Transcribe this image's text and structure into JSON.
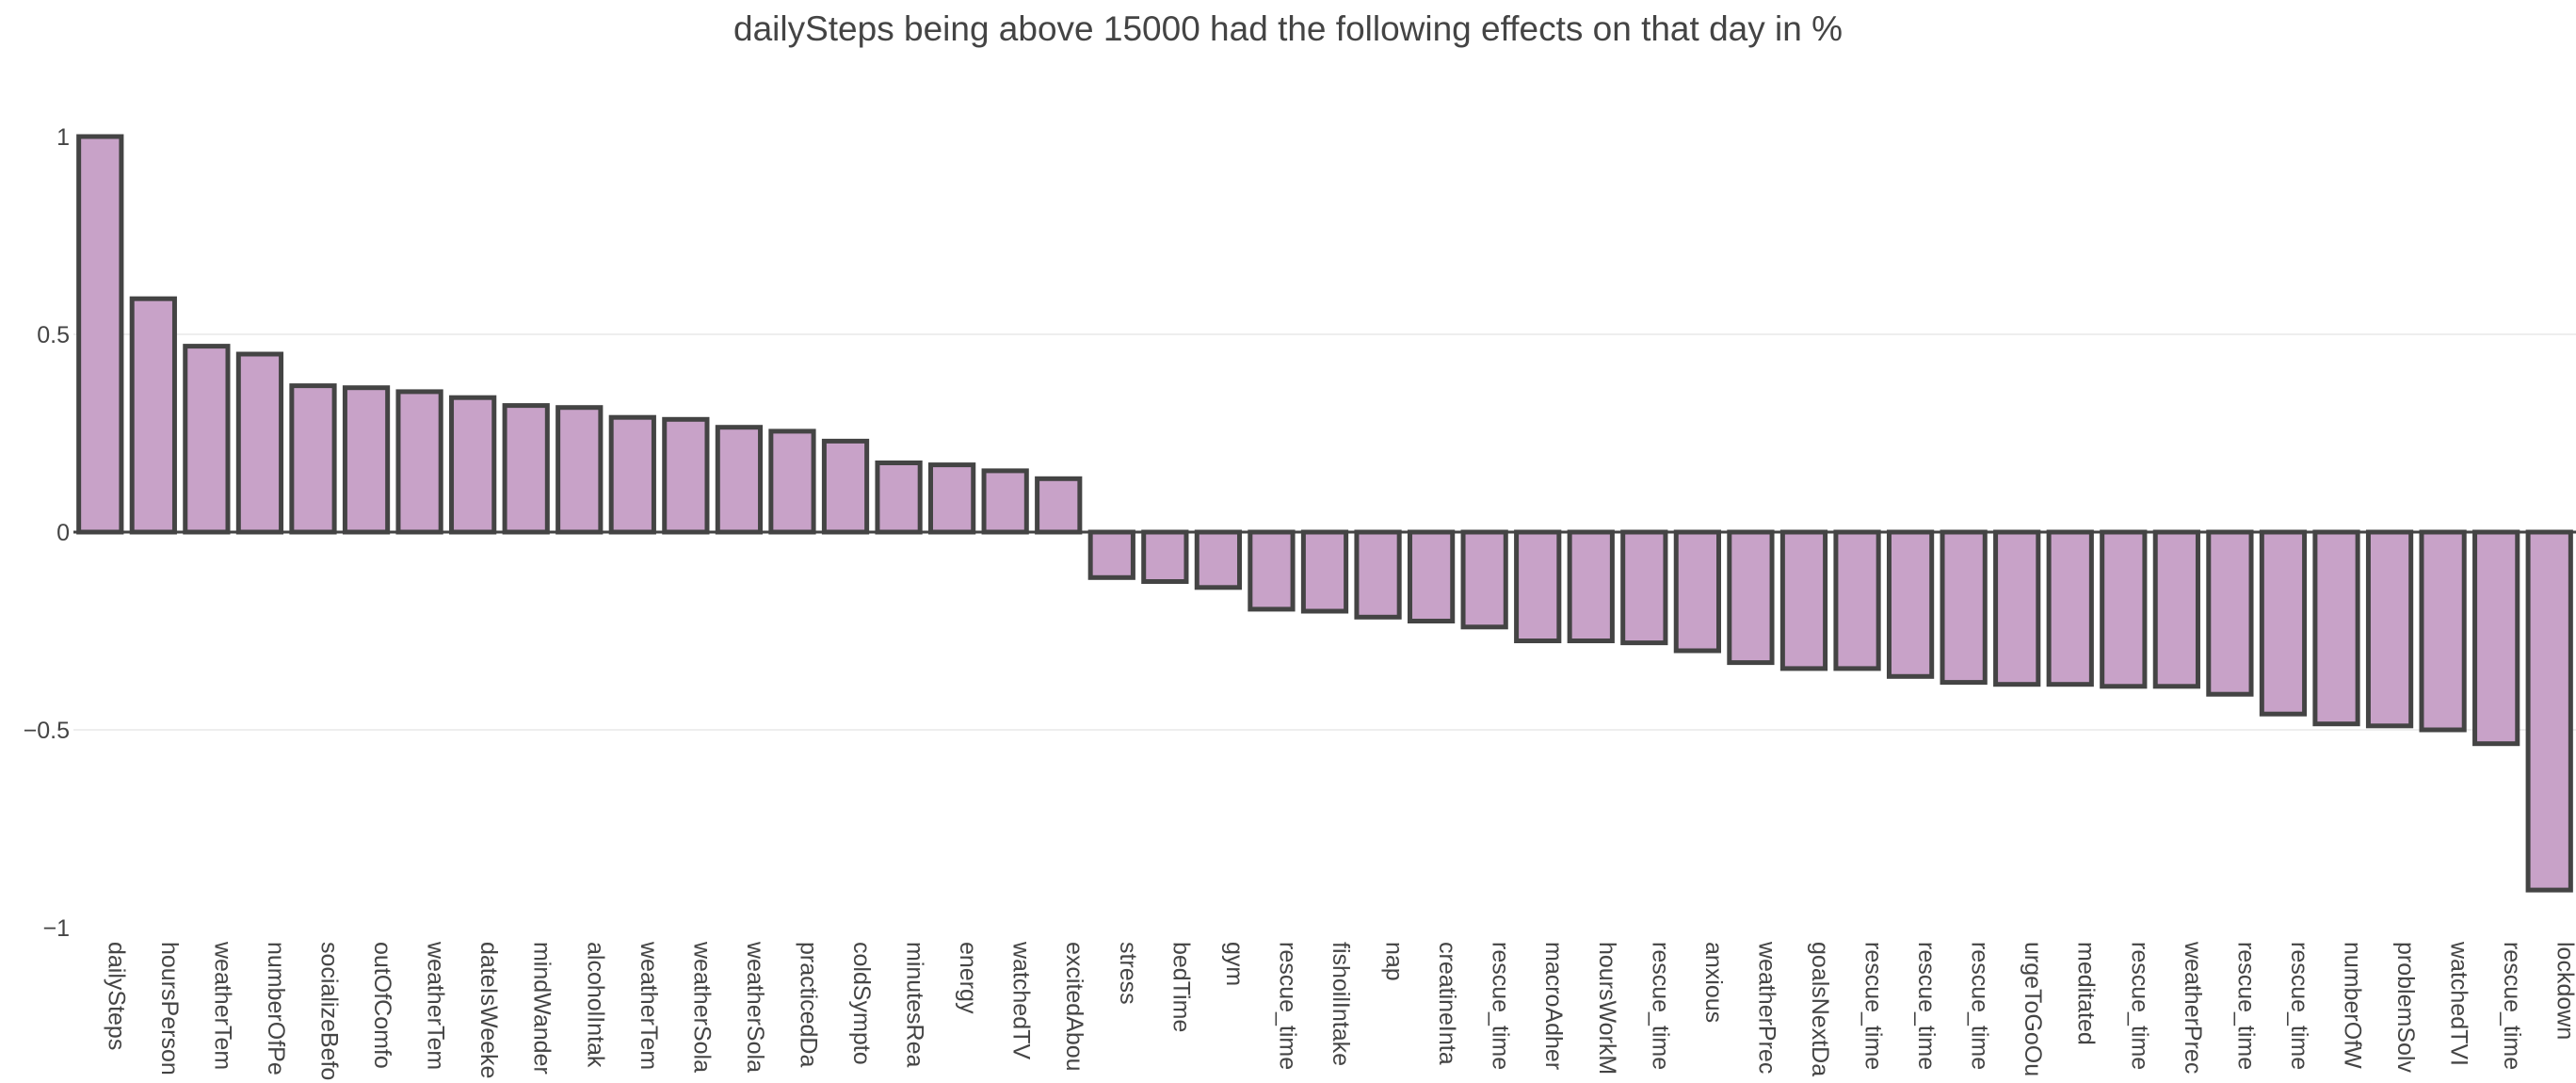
{
  "chart_data": {
    "type": "bar",
    "title": "dailySteps being above 15000 had the following effects on that day in %",
    "xlabel": "",
    "ylabel": "",
    "ylim": [
      -1,
      1
    ],
    "yticks": [
      1,
      0.5,
      0,
      -0.5,
      -1
    ],
    "ytick_labels": [
      "1",
      "0.5",
      "0",
      "−0.5",
      "−1"
    ],
    "grid": true,
    "bar_color": "#c8a2c8",
    "bar_outline_color": "#444444",
    "categories": [
      "dailySteps",
      "hoursPerson",
      "weatherTem",
      "numberOfPe",
      "socializeBefo",
      "outOfComfo",
      "weatherTem",
      "dateIsWeeke",
      "mindWander",
      "alcoholIntak",
      "weatherTem",
      "weatherSola",
      "weatherSola",
      "practicedDa",
      "coldSympto",
      "minutesRea",
      "energy",
      "watchedTV",
      "excitedAbou",
      "stress",
      "bedTime",
      "gym",
      "rescue_time",
      "fishoilIntake",
      "nap",
      "creatineInta",
      "rescue_time",
      "macroAdher",
      "hoursWorkM",
      "rescue_time",
      "anxious",
      "weatherPrec",
      "goalsNextDa",
      "rescue_time",
      "rescue_time",
      "rescue_time",
      "urgeToGoOu",
      "meditated",
      "rescue_time",
      "weatherPrec",
      "rescue_time",
      "rescue_time",
      "numberOfW",
      "problemSolv",
      "watchedTVI",
      "rescue_time",
      "lockdown"
    ],
    "values": [
      1.0,
      0.59,
      0.47,
      0.45,
      0.37,
      0.365,
      0.355,
      0.34,
      0.32,
      0.315,
      0.29,
      0.285,
      0.265,
      0.255,
      0.23,
      0.175,
      0.17,
      0.155,
      0.135,
      -0.115,
      -0.125,
      -0.14,
      -0.195,
      -0.2,
      -0.215,
      -0.225,
      -0.24,
      -0.275,
      -0.275,
      -0.28,
      -0.3,
      -0.33,
      -0.345,
      -0.345,
      -0.365,
      -0.38,
      -0.385,
      -0.385,
      -0.39,
      -0.39,
      -0.41,
      -0.46,
      -0.485,
      -0.49,
      -0.5,
      -0.535,
      -0.905
    ]
  }
}
